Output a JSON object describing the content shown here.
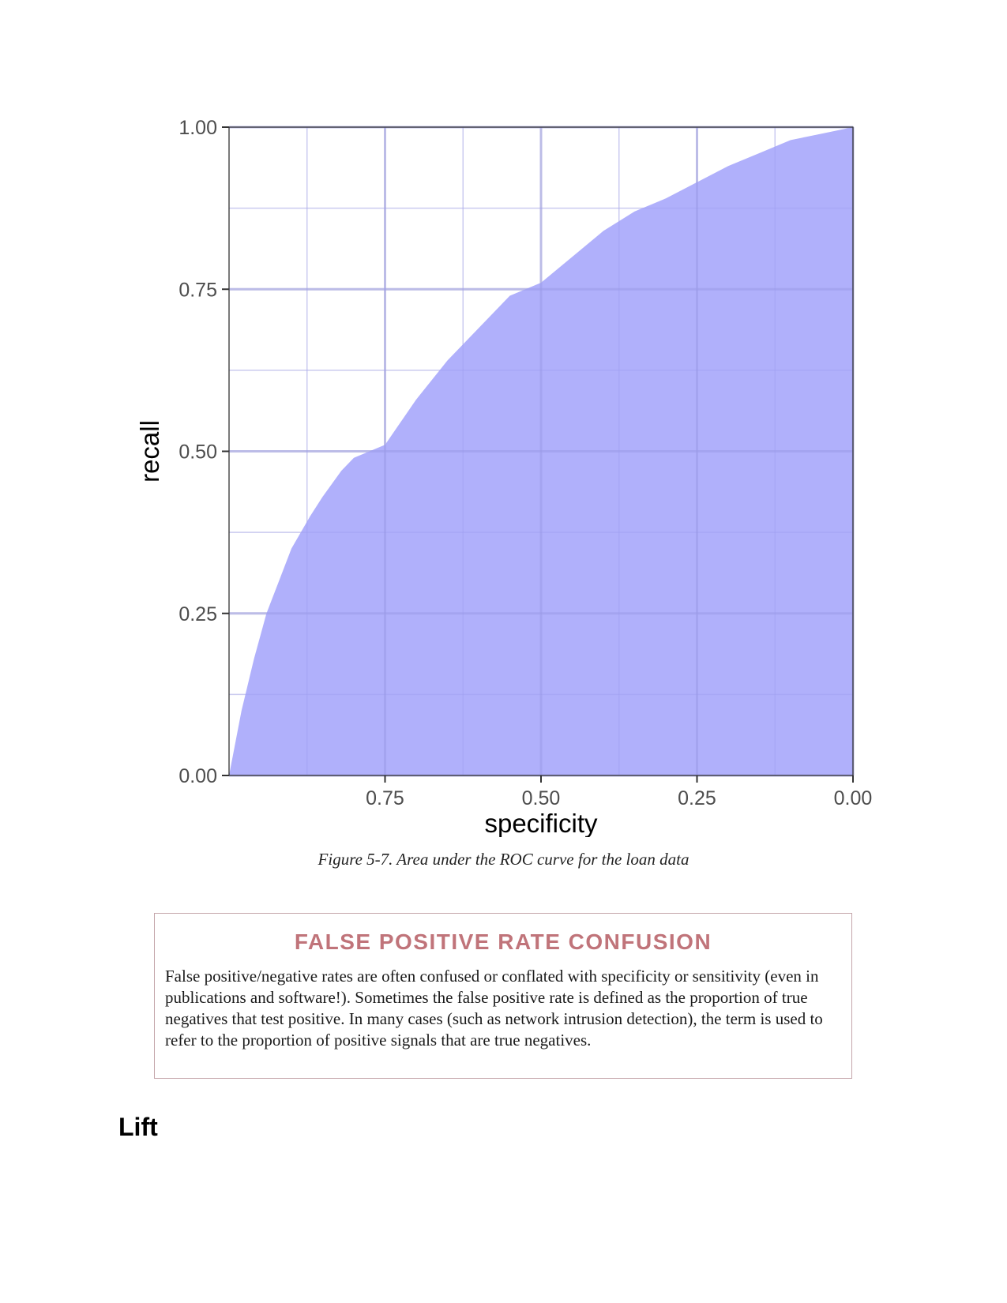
{
  "chart_data": {
    "type": "area",
    "xlabel": "specificity",
    "ylabel": "recall",
    "x_reversed": true,
    "xlim": [
      1.0,
      0.0
    ],
    "ylim": [
      0.0,
      1.0
    ],
    "x_ticks": [
      "0.75",
      "0.50",
      "0.25",
      "0.00"
    ],
    "y_ticks": [
      "0.00",
      "0.25",
      "0.50",
      "0.75",
      "1.00"
    ],
    "fill_color": "#b0b0fb",
    "grid": true,
    "series": [
      {
        "x": [
          1.0,
          0.98,
          0.96,
          0.94,
          0.92,
          0.9,
          0.87,
          0.85,
          0.82,
          0.8,
          0.75,
          0.7,
          0.65,
          0.6,
          0.55,
          0.5,
          0.45,
          0.4,
          0.35,
          0.3,
          0.25,
          0.2,
          0.15,
          0.1,
          0.05,
          0.0
        ],
        "y": [
          0.0,
          0.1,
          0.18,
          0.25,
          0.3,
          0.35,
          0.4,
          0.43,
          0.47,
          0.49,
          0.51,
          0.58,
          0.64,
          0.69,
          0.74,
          0.76,
          0.8,
          0.84,
          0.87,
          0.89,
          0.915,
          0.94,
          0.96,
          0.98,
          0.99,
          1.0
        ]
      }
    ]
  },
  "caption": "Figure 5-7. Area under the ROC curve for the loan data",
  "sidebar": {
    "title": "FALSE POSITIVE RATE CONFUSION",
    "body": "False positive/negative rates are often confused or conflated with specificity or sensitivity (even in publications and software!). Sometimes the false positive rate is defined as the proportion of true negatives that test positive. In many cases (such as network intrusion detection), the term is used to refer to the proportion of positive signals that are true negatives."
  },
  "section_heading": "Lift"
}
